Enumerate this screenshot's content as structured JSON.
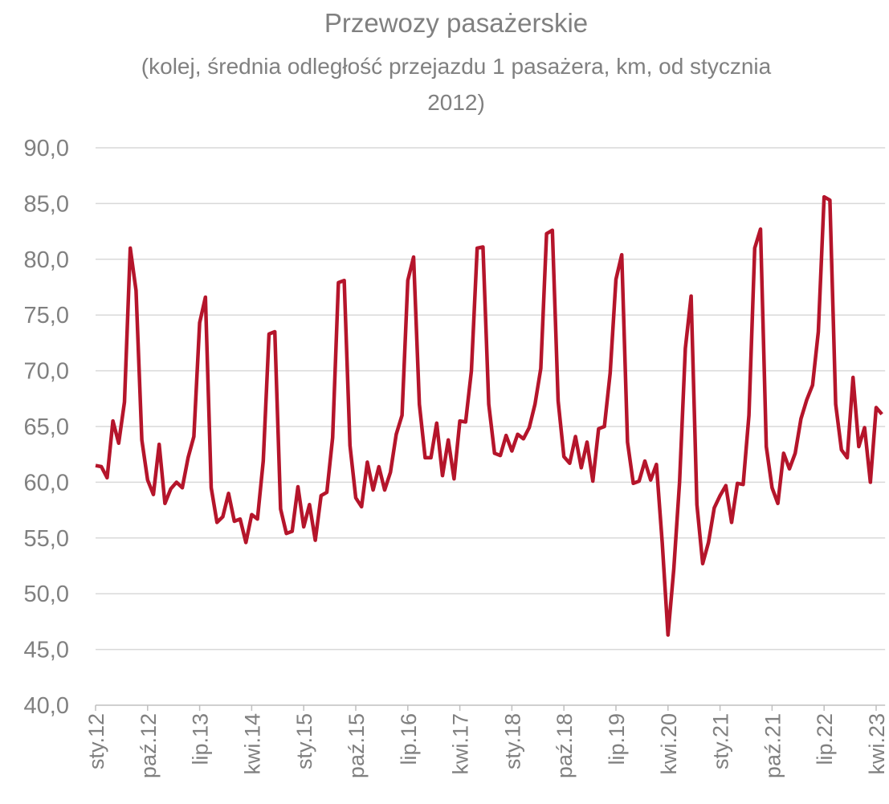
{
  "chart_data": {
    "type": "line",
    "title": "Przewozy pasażerskie",
    "subtitle": "(kolej, średnia odległość przejazdu 1 pasażera, km, od stycznia 2012)",
    "categories": [
      "sty.12",
      null,
      null,
      null,
      null,
      null,
      null,
      null,
      null,
      "paź.12",
      null,
      null,
      null,
      null,
      null,
      null,
      null,
      null,
      "lip.13",
      null,
      null,
      null,
      null,
      null,
      null,
      null,
      null,
      "kwi.14",
      null,
      null,
      null,
      null,
      null,
      null,
      null,
      null,
      "sty.15",
      null,
      null,
      null,
      null,
      null,
      null,
      null,
      null,
      "paź.15",
      null,
      null,
      null,
      null,
      null,
      null,
      null,
      null,
      "lip.16",
      null,
      null,
      null,
      null,
      null,
      null,
      null,
      null,
      "kwi.17",
      null,
      null,
      null,
      null,
      null,
      null,
      null,
      null,
      "sty.18",
      null,
      null,
      null,
      null,
      null,
      null,
      null,
      null,
      "paź.18",
      null,
      null,
      null,
      null,
      null,
      null,
      null,
      null,
      "lip.19",
      null,
      null,
      null,
      null,
      null,
      null,
      null,
      null,
      "kwi.20",
      null,
      null,
      null,
      null,
      null,
      null,
      null,
      null,
      "sty.21",
      null,
      null,
      null,
      null,
      null,
      null,
      null,
      null,
      "paź.21",
      null,
      null,
      null,
      null,
      null,
      null,
      null,
      null,
      "lip.22",
      null,
      null,
      null,
      null,
      null,
      null,
      null,
      null,
      "kwi.23",
      null
    ],
    "values": [
      61.5,
      61.4,
      60.4,
      65.5,
      63.5,
      67.2,
      81.0,
      77.2,
      63.8,
      60.2,
      58.9,
      63.4,
      58.1,
      59.4,
      60.0,
      59.5,
      62.2,
      64.1,
      74.3,
      76.6,
      59.5,
      56.4,
      56.9,
      59.0,
      56.5,
      56.7,
      54.6,
      57.1,
      56.7,
      61.9,
      73.3,
      73.5,
      57.6,
      55.4,
      55.6,
      59.6,
      56.0,
      58.0,
      54.8,
      58.8,
      59.1,
      64.0,
      77.9,
      78.1,
      63.3,
      58.6,
      57.8,
      61.8,
      59.3,
      61.4,
      59.3,
      60.9,
      64.3,
      66.0,
      78.1,
      80.2,
      67.0,
      62.2,
      62.2,
      65.3,
      60.6,
      63.8,
      60.3,
      65.5,
      65.4,
      70.0,
      81.0,
      81.1,
      67.0,
      62.6,
      62.4,
      64.2,
      62.8,
      64.3,
      63.9,
      64.9,
      67.0,
      70.2,
      82.3,
      82.6,
      67.3,
      62.3,
      61.7,
      64.1,
      61.3,
      63.6,
      60.1,
      64.8,
      65.0,
      69.8,
      78.2,
      80.4,
      63.6,
      59.9,
      60.1,
      61.9,
      60.2,
      61.6,
      54.6,
      46.3,
      52.2,
      60.0,
      72.0,
      76.7,
      58.0,
      52.7,
      54.6,
      57.7,
      58.8,
      59.7,
      56.4,
      59.9,
      59.8,
      66.0,
      81.0,
      82.7,
      63.2,
      59.5,
      58.1,
      62.6,
      61.2,
      62.6,
      65.7,
      67.4,
      68.7,
      73.5,
      85.6,
      85.3,
      67.0,
      62.9,
      62.2,
      69.4,
      63.2,
      64.9,
      60.0,
      66.7,
      66.1
    ],
    "color": "#b5152b",
    "ylim": [
      40,
      90
    ],
    "yticks": [
      {
        "value": 40,
        "label": "40,0"
      },
      {
        "value": 45,
        "label": "45,0"
      },
      {
        "value": 50,
        "label": "50,0"
      },
      {
        "value": 55,
        "label": "55,0"
      },
      {
        "value": 60,
        "label": "60,0"
      },
      {
        "value": 65,
        "label": "65,0"
      },
      {
        "value": 70,
        "label": "70,0"
      },
      {
        "value": 75,
        "label": "75,0"
      },
      {
        "value": 80,
        "label": "80,0"
      },
      {
        "value": 85,
        "label": "85,0"
      },
      {
        "value": 90,
        "label": "90,0"
      }
    ],
    "grid": true
  }
}
